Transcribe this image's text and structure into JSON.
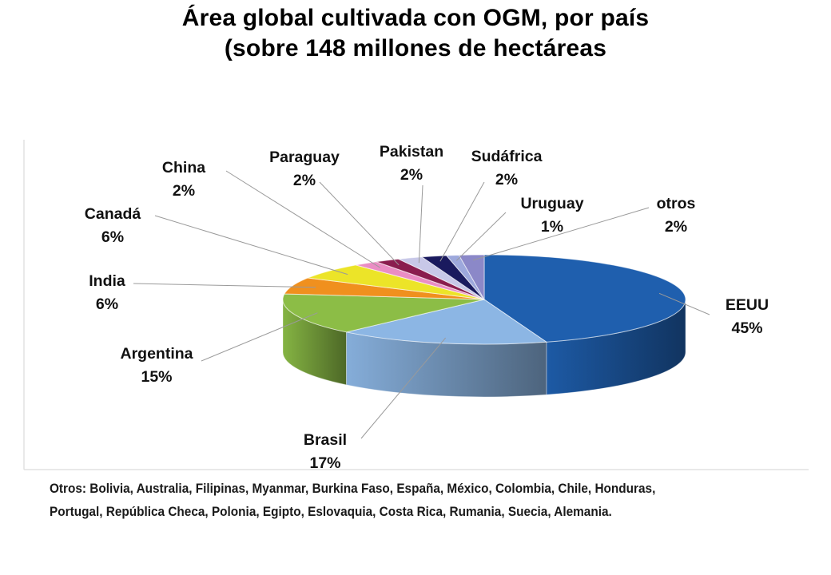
{
  "chart_data": {
    "type": "pie",
    "title": "Área global cultivada con OGM, por país",
    "subtitle": "(sobre 148 millones de hectáreas",
    "slices": [
      {
        "label": "EEUU",
        "value": 45,
        "value_label": "45%",
        "color": "#1f5fae"
      },
      {
        "label": "Brasil",
        "value": 17,
        "value_label": "17%",
        "color": "#8cb6e4"
      },
      {
        "label": "Argentina",
        "value": 15,
        "value_label": "15%",
        "color": "#8cbd46"
      },
      {
        "label": "India",
        "value": 6,
        "value_label": "6%",
        "color": "#f0901e"
      },
      {
        "label": "Canadá",
        "value": 6,
        "value_label": "6%",
        "color": "#ece428"
      },
      {
        "label": "China",
        "value": 2,
        "value_label": "2%",
        "color": "#ea8dc4"
      },
      {
        "label": "Paraguay",
        "value": 2,
        "value_label": "2%",
        "color": "#8a1d4e"
      },
      {
        "label": "Pakistan",
        "value": 2,
        "value_label": "2%",
        "color": "#c8c8e8"
      },
      {
        "label": "Sudáfrica",
        "value": 2,
        "value_label": "2%",
        "color": "#1a1a5e"
      },
      {
        "label": "Uruguay",
        "value": 1,
        "value_label": "1%",
        "color": "#9da8dc"
      },
      {
        "label": "otros",
        "value": 2,
        "value_label": "2%",
        "color": "#8b88c8"
      }
    ],
    "style": "3d-pie",
    "legend": "none"
  },
  "footnote": {
    "line1": "Otros: Bolivia, Australia, Filipinas, Myanmar, Burkina Faso, España, México, Colombia, Chile,  Honduras,",
    "line2": "Portugal, República Checa, Polonia, Egipto, Eslovaquia, Costa Rica, Rumania, Suecia, Alemania."
  }
}
